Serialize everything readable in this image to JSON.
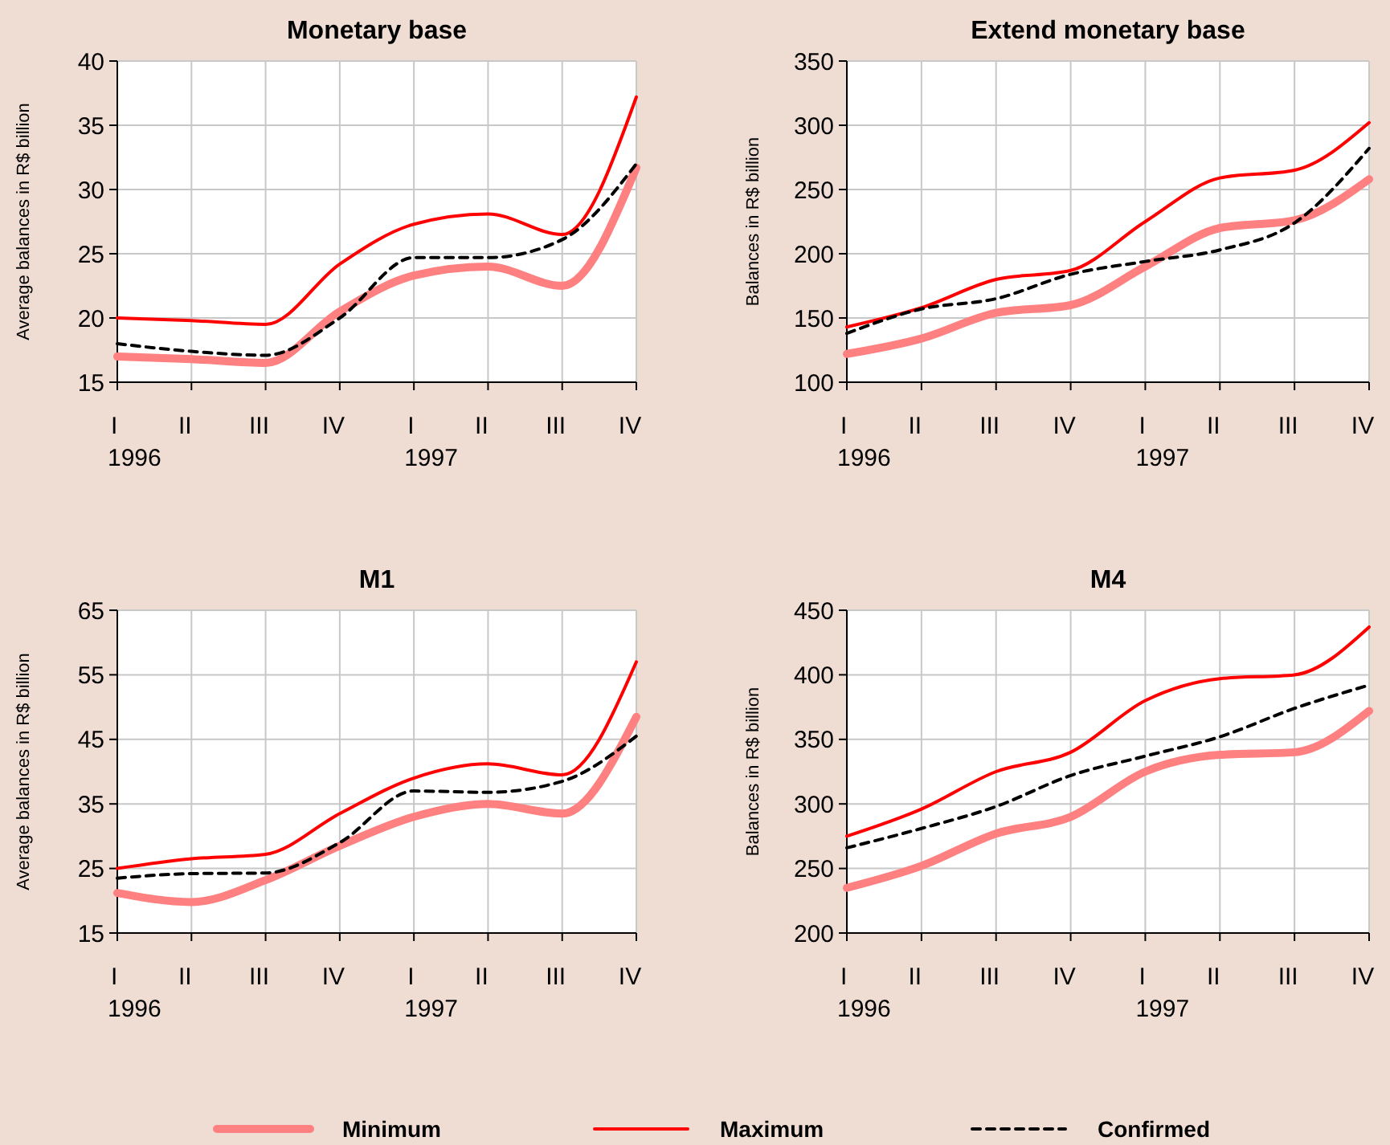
{
  "chart_data": [
    {
      "type": "line",
      "title": "Monetary base",
      "ylabel": "Average balances in R$ billion",
      "categories": [
        "I\n1996",
        "II",
        "III",
        "IV",
        "I\n1997",
        "II",
        "III",
        "IV"
      ],
      "ylim": [
        15,
        40
      ],
      "yticks": [
        15,
        20,
        25,
        30,
        35,
        40
      ],
      "grid": true,
      "legend": "bottom",
      "series": [
        {
          "name": "Minimum",
          "color": "#ff8080",
          "values": [
            17,
            16.8,
            16.5,
            20.5,
            23.3,
            24,
            22.5,
            31.7
          ]
        },
        {
          "name": "Maximum",
          "color": "#ff0000",
          "values": [
            20,
            19.8,
            19.5,
            24.2,
            27.3,
            28.1,
            26.5,
            37.2
          ]
        },
        {
          "name": "Confirmed",
          "color": "#000000",
          "line_style": "dashed",
          "values": [
            18,
            17.4,
            17.1,
            20,
            24.7,
            24.7,
            26.1,
            32
          ]
        }
      ]
    },
    {
      "type": "line",
      "title": "Extend monetary base",
      "ylabel": "Balances in R$ billion",
      "categories": [
        "I\n1996",
        "II",
        "III",
        "IV",
        "I\n1997",
        "II",
        "III",
        "IV"
      ],
      "ylim": [
        100,
        350
      ],
      "yticks": [
        100,
        150,
        200,
        250,
        300,
        350
      ],
      "grid": true,
      "series": [
        {
          "color": "#ff8080",
          "values": [
            122,
            134,
            154,
            160,
            190,
            220,
            226,
            258
          ]
        },
        {
          "color": "#ff0000",
          "values": [
            143,
            158,
            180,
            187,
            225,
            259,
            265,
            302
          ]
        },
        {
          "color": "#000000",
          "line_style": "dashed",
          "values": [
            138,
            157,
            165,
            184,
            194,
            203,
            224,
            282
          ]
        }
      ]
    },
    {
      "type": "line",
      "title": "M1",
      "ylabel": "Average balances in R$ billion",
      "categories": [
        "I\n1996",
        "II",
        "III",
        "IV",
        "I\n1997",
        "II",
        "III",
        "IV"
      ],
      "ylim": [
        15,
        65
      ],
      "yticks": [
        15,
        25,
        35,
        45,
        55,
        65
      ],
      "grid": true,
      "series": [
        {
          "color": "#ff8080",
          "values": [
            21.2,
            19.8,
            23.2,
            28.5,
            33,
            35,
            33.5,
            48.5
          ]
        },
        {
          "color": "#ff0000",
          "values": [
            25,
            26.5,
            27.2,
            33.5,
            39,
            41.2,
            39.5,
            57
          ]
        },
        {
          "color": "#000000",
          "line_style": "dashed",
          "values": [
            23.5,
            24.2,
            24.3,
            29,
            37,
            36.8,
            38.5,
            45.5
          ]
        }
      ]
    },
    {
      "type": "line",
      "title": "M4",
      "ylabel": "Balances in R$ billion",
      "categories": [
        "I\n1996",
        "II",
        "III",
        "IV",
        "I\n1997",
        "II",
        "III",
        "IV"
      ],
      "ylim": [
        200,
        450
      ],
      "yticks": [
        200,
        250,
        300,
        350,
        400,
        450
      ],
      "grid": true,
      "series": [
        {
          "color": "#ff8080",
          "values": [
            235,
            252,
            277,
            290,
            325,
            338,
            340,
            372
          ]
        },
        {
          "color": "#ff0000",
          "values": [
            275,
            296,
            325,
            340,
            380,
            397,
            400,
            437
          ]
        },
        {
          "color": "#000000",
          "line_style": "dashed",
          "values": [
            266,
            281,
            298,
            322,
            337,
            352,
            374,
            392
          ]
        }
      ]
    }
  ]
}
